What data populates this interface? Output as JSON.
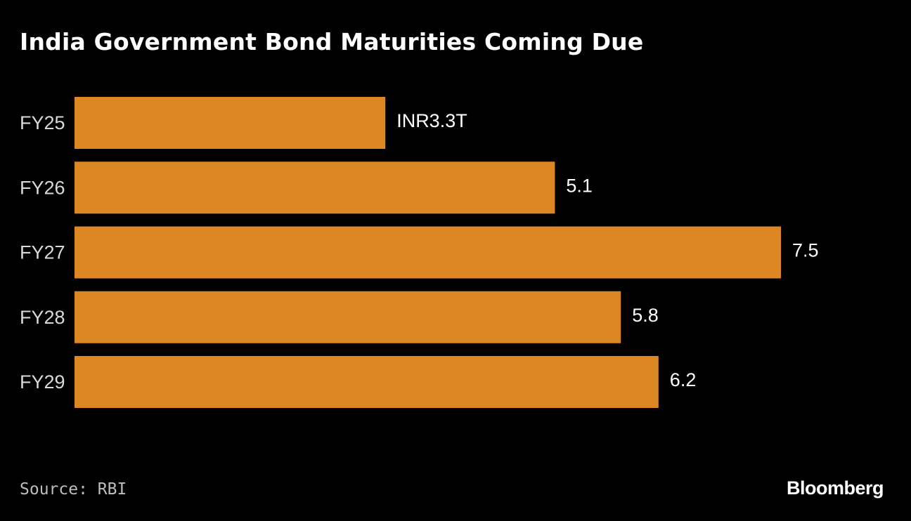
{
  "title": "India Government Bond Maturities Coming Due",
  "source": "Source: RBI",
  "brand": "Bloomberg",
  "colors": {
    "background": "#000000",
    "bar": "#dc8722",
    "text": "#ffffff",
    "category_text": "#d9d9d9"
  },
  "chart_data": {
    "type": "bar",
    "orientation": "horizontal",
    "title": "India Government Bond Maturities Coming Due",
    "categories": [
      "FY25",
      "FY26",
      "FY27",
      "FY28",
      "FY29"
    ],
    "values": [
      3.3,
      5.1,
      7.5,
      5.8,
      6.2
    ],
    "value_labels": [
      "INR3.3T",
      "5.1",
      "7.5",
      "5.8",
      "6.2"
    ],
    "unit": "INR trillion",
    "xlim": [
      0,
      7.5
    ],
    "xlabel": "",
    "ylabel": "",
    "grid": false,
    "legend": "none"
  }
}
